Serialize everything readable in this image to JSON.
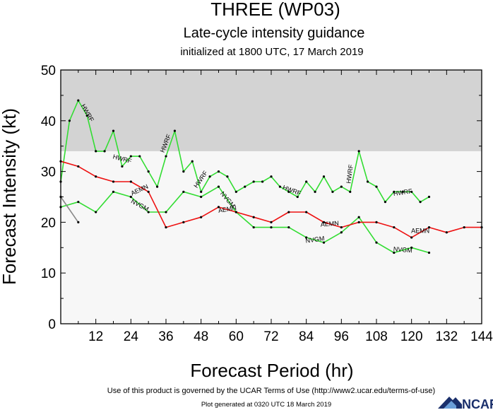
{
  "chart_data": {
    "type": "line",
    "title": "THREE (WP03)",
    "subtitle": "Late-cycle intensity guidance",
    "subtitle2": "initialized at 1800 UTC, 17 March 2019",
    "xlabel": "Forecast Period (hr)",
    "ylabel": "Forecast Intensity (kt)",
    "xlim": [
      0,
      144
    ],
    "ylim": [
      0,
      50
    ],
    "xticks": [
      12,
      24,
      36,
      48,
      60,
      72,
      84,
      96,
      108,
      120,
      132,
      144
    ],
    "yticks": [
      0,
      10,
      20,
      30,
      40,
      50
    ],
    "shaded_region": {
      "y_from": 34,
      "y_to": 50,
      "color": "#d3d3d3"
    },
    "series": [
      {
        "name": "HWRF",
        "color": "#33dd33",
        "x": [
          0,
          3,
          6,
          9,
          12,
          15,
          18,
          21,
          24,
          27,
          30,
          33,
          36,
          39,
          42,
          45,
          48,
          51,
          54,
          57,
          60,
          63,
          66,
          69,
          72,
          75,
          78,
          81,
          84,
          87,
          90,
          93,
          96,
          99,
          102,
          105,
          108,
          111,
          114,
          117,
          120,
          123,
          126
        ],
        "values": [
          28,
          40,
          44,
          41,
          34,
          34,
          38,
          31,
          33,
          33,
          30,
          27,
          33,
          38,
          30,
          32,
          26,
          29,
          30,
          29,
          26,
          27,
          28,
          28,
          29,
          27,
          26,
          25,
          28,
          26,
          29,
          26,
          27,
          26,
          34,
          28,
          27,
          24,
          26,
          26,
          26,
          24,
          25
        ],
        "labels": [
          {
            "text": "HWRF",
            "x": 9,
            "y": 41.5,
            "angle": 60
          },
          {
            "text": "HWRF",
            "x": 21,
            "y": 32.4,
            "angle": 15
          },
          {
            "text": "HWRF",
            "x": 36,
            "y": 35.5,
            "angle": -68
          },
          {
            "text": "HWRF",
            "x": 48,
            "y": 28.4,
            "angle": -55
          },
          {
            "text": "HWRF",
            "x": 79,
            "y": 26.2,
            "angle": 20
          },
          {
            "text": "HWRF",
            "x": 99,
            "y": 29.5,
            "angle": -82
          },
          {
            "text": "HWRF",
            "x": 117,
            "y": 25.8,
            "angle": -8
          }
        ]
      },
      {
        "name": "NVGM",
        "color": "#33dd33",
        "x": [
          0,
          6,
          12,
          18,
          24,
          30,
          36,
          42,
          48,
          54,
          60,
          66,
          72,
          78,
          84,
          90,
          96,
          102,
          108,
          114,
          120,
          126
        ],
        "values": [
          23,
          24,
          22,
          26,
          25,
          22,
          22,
          26,
          25,
          27,
          22,
          19,
          19,
          19,
          17,
          16,
          18,
          21,
          16,
          14,
          15,
          14
        ],
        "labels": [
          {
            "text": "NVGM",
            "x": 27,
            "y": 23.3,
            "angle": 28
          },
          {
            "text": "NVGM",
            "x": 57,
            "y": 24.4,
            "angle": 50
          },
          {
            "text": "NVGM",
            "x": 87,
            "y": 16.5,
            "angle": -8
          },
          {
            "text": "NVGM",
            "x": 117,
            "y": 14.5,
            "angle": 5
          }
        ]
      },
      {
        "name": "AEMN",
        "color": "#ee1111",
        "x": [
          0,
          6,
          12,
          18,
          24,
          30,
          36,
          42,
          48,
          54,
          60,
          66,
          72,
          78,
          84,
          90,
          96,
          102,
          108,
          114,
          120,
          126,
          132,
          138,
          144
        ],
        "values": [
          32,
          31,
          29,
          28,
          28,
          26,
          19,
          20,
          21,
          23,
          22,
          21,
          20,
          22,
          22,
          20,
          19,
          20,
          20,
          19,
          17,
          19,
          18,
          19,
          19
        ],
        "labels": [
          {
            "text": "AEMN",
            "x": 27,
            "y": 26.3,
            "angle": -25
          },
          {
            "text": "AEMN",
            "x": 57,
            "y": 22.5,
            "angle": -10
          },
          {
            "text": "AEMN",
            "x": 92,
            "y": 19.6,
            "angle": -5
          },
          {
            "text": "AEMN",
            "x": 123,
            "y": 18.2,
            "angle": 0
          }
        ]
      },
      {
        "name": "",
        "color": "#888888",
        "x": [
          0,
          6
        ],
        "values": [
          25,
          20
        ],
        "labels": []
      }
    ]
  },
  "footer": {
    "terms": "Use of this product is governed by the UCAR Terms of Use (http://www2.ucar.edu/terms-of-use)",
    "generated": "Plot generated at 0320 UTC   18 March 2019"
  },
  "logo": {
    "text": "NCAR",
    "color": "#1a2f6b"
  }
}
